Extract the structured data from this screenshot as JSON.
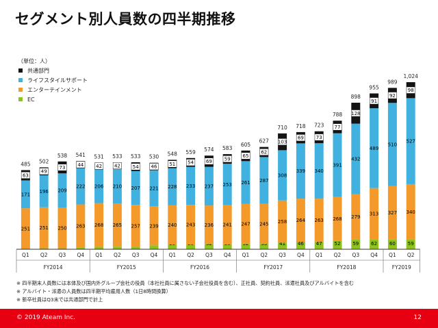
{
  "title": "セグメント別人員数の四半期推移",
  "unit_label": "（単位：人）",
  "notes": [
    "※ 四半期末人員数には本体及び国内外グループ会社の役員（本社社員に属さない子会社役員を含む）、正社員、契約社員、派遣社員及びアルバイトを含む",
    "※ アルバイト・派遣の人員数は四半期平均雇用人数（1日8時間換算）",
    "※ 新卒社員はQ3末では共通部門で計上"
  ],
  "footer": {
    "copyright": "© 2019 Ateam Inc.",
    "page_number": "12"
  },
  "colors": {
    "common": "#141414",
    "lifestyle": "#41b1e0",
    "entertainment": "#f39a2b",
    "ec": "#8dc21f"
  },
  "chart_data": {
    "type": "bar",
    "stacked": true,
    "ylim": [
      0,
      1024
    ],
    "categories": [
      "Q1",
      "Q2",
      "Q3",
      "Q4",
      "Q1",
      "Q2",
      "Q3",
      "Q4",
      "Q1",
      "Q2",
      "Q3",
      "Q4",
      "Q1",
      "Q2",
      "Q3",
      "Q4",
      "Q1",
      "Q2",
      "Q3",
      "Q4",
      "Q1",
      "Q2"
    ],
    "fiscal_years": [
      {
        "label": "FY2014",
        "count": 4
      },
      {
        "label": "FY2015",
        "count": 4
      },
      {
        "label": "FY2016",
        "count": 4
      },
      {
        "label": "FY2017",
        "count": 4
      },
      {
        "label": "FY2018",
        "count": 4
      },
      {
        "label": "FY2019",
        "count": 2
      }
    ],
    "series": [
      {
        "name": "EC",
        "key": "ec",
        "values": [
          0,
          6,
          6,
          12,
          15,
          16,
          15,
          24,
          29,
          29,
          32,
          30,
          32,
          33,
          41,
          46,
          47,
          52,
          59,
          62,
          60,
          59
        ]
      },
      {
        "name": "エンターテインメント",
        "key": "entertainment",
        "values": [
          251,
          251,
          250,
          263,
          268,
          265,
          257,
          239,
          240,
          243,
          236,
          241,
          247,
          245,
          258,
          264,
          263,
          268,
          279,
          313,
          327,
          340
        ]
      },
      {
        "name": "ライフスタイルサポート",
        "key": "lifestyle",
        "values": [
          171,
          196,
          209,
          222,
          206,
          210,
          207,
          221,
          228,
          233,
          237,
          253,
          261,
          287,
          308,
          339,
          340,
          391,
          432,
          489,
          510,
          527
        ]
      },
      {
        "name": "共通部門",
        "key": "common",
        "values": [
          63,
          49,
          73,
          44,
          42,
          42,
          54,
          46,
          51,
          54,
          69,
          59,
          65,
          62,
          103,
          69,
          73,
          77,
          128,
          91,
          92,
          98
        ]
      }
    ],
    "legend_order": [
      "common",
      "lifestyle",
      "entertainment",
      "ec"
    ],
    "totals": [
      "485",
      "502",
      "538",
      "541",
      "531",
      "533",
      "533",
      "530",
      "548",
      "559",
      "574",
      "583",
      "605",
      "627",
      "710",
      "718",
      "723",
      "788",
      "898",
      "955",
      "989",
      "1,024"
    ]
  }
}
